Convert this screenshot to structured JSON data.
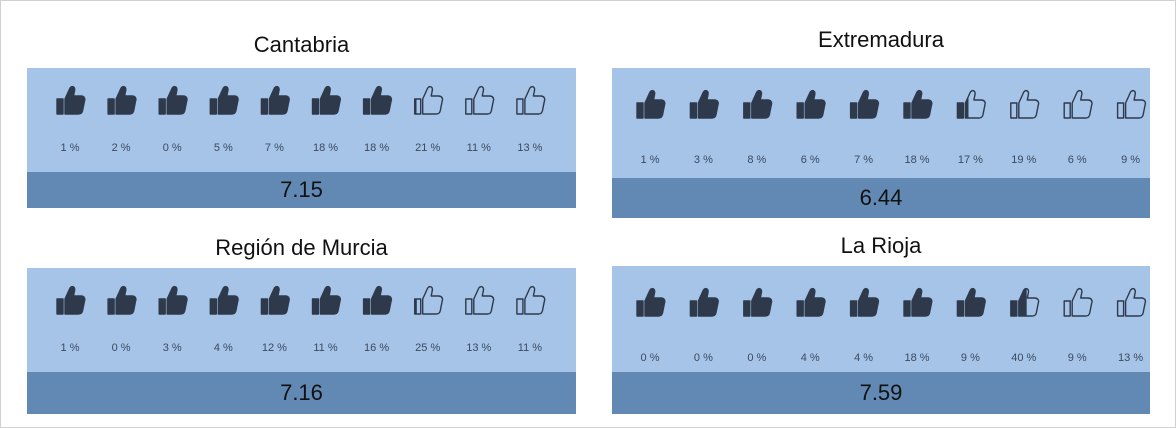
{
  "panels": [
    {
      "title": "Cantabria",
      "percentages": [
        "1 %",
        "2 %",
        "0 %",
        "5 %",
        "7 %",
        "18 %",
        "18 %",
        "21 %",
        "11 %",
        "13 %"
      ],
      "score": 7.15
    },
    {
      "title": "Extremadura",
      "percentages": [
        "1 %",
        "3 %",
        "8 %",
        "6 %",
        "7 %",
        "18 %",
        "17 %",
        "19 %",
        "6 %",
        "9 %"
      ],
      "score": 6.44
    },
    {
      "title": "Región de Murcia",
      "percentages": [
        "1 %",
        "0 %",
        "3 %",
        "4 %",
        "12 %",
        "11 %",
        "16 %",
        "25 %",
        "13 %",
        "11 %"
      ],
      "score": 7.16
    },
    {
      "title": "La Rioja",
      "percentages": [
        "0 %",
        "0 %",
        "0 %",
        "4 %",
        "4 %",
        "18 %",
        "9 %",
        "40 %",
        "9 %",
        "13 %"
      ],
      "score": 7.59
    }
  ]
}
